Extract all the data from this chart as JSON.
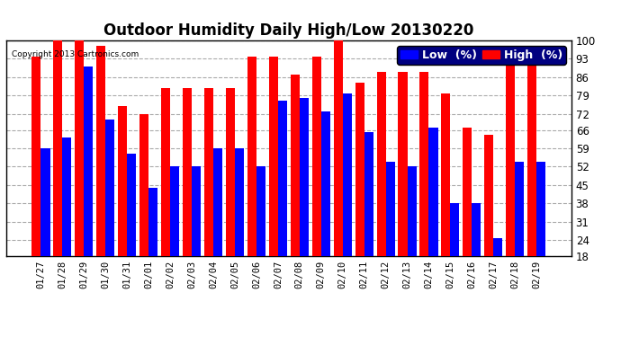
{
  "title": "Outdoor Humidity Daily High/Low 20130220",
  "copyright": "Copyright 2013 Cartronics.com",
  "dates": [
    "01/27",
    "01/28",
    "01/29",
    "01/30",
    "01/31",
    "02/01",
    "02/02",
    "02/03",
    "02/04",
    "02/05",
    "02/06",
    "02/07",
    "02/08",
    "02/09",
    "02/10",
    "02/11",
    "02/12",
    "02/13",
    "02/14",
    "02/15",
    "02/16",
    "02/17",
    "02/18",
    "02/19"
  ],
  "high": [
    94,
    100,
    100,
    98,
    75,
    72,
    82,
    82,
    82,
    82,
    94,
    94,
    87,
    94,
    100,
    84,
    88,
    88,
    88,
    80,
    67,
    64,
    93,
    91
  ],
  "low": [
    59,
    63,
    90,
    70,
    57,
    44,
    52,
    52,
    59,
    59,
    52,
    77,
    78,
    73,
    80,
    65,
    54,
    52,
    67,
    38,
    38,
    25,
    54,
    54
  ],
  "ymin": 18,
  "ylim": [
    18,
    100
  ],
  "yticks": [
    18,
    24,
    31,
    38,
    45,
    52,
    59,
    66,
    72,
    79,
    86,
    93,
    100
  ],
  "bar_width": 0.42,
  "high_color": "#ff0000",
  "low_color": "#0000ff",
  "bg_color": "#ffffff",
  "grid_color": "#aaaaaa",
  "title_fontsize": 12,
  "legend_fontsize": 9
}
